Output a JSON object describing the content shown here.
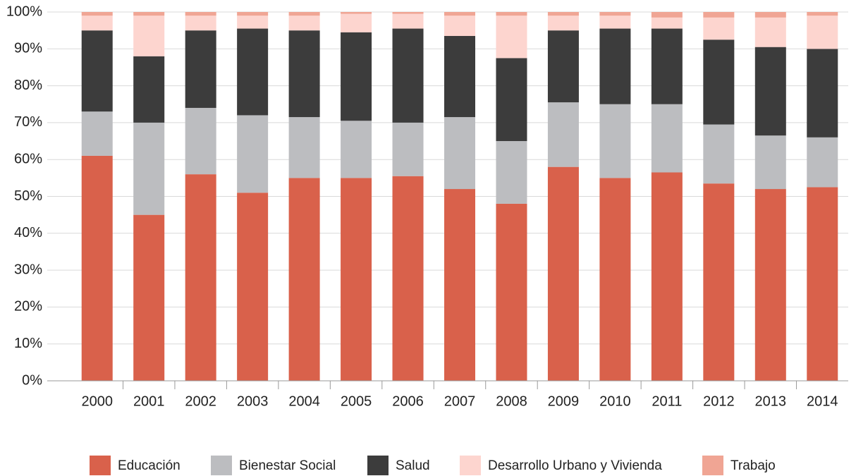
{
  "chart_data": {
    "type": "stacked_bar",
    "categories": [
      "2000",
      "2001",
      "2002",
      "2003",
      "2004",
      "2005",
      "2006",
      "2007",
      "2008",
      "2009",
      "2010",
      "2011",
      "2012",
      "2013",
      "2014"
    ],
    "series": [
      {
        "name": "Educación",
        "color": "#d9614b",
        "values": [
          61,
          45,
          56,
          51,
          55,
          55,
          55.5,
          52,
          48,
          58,
          55,
          56.5,
          53.5,
          52,
          52.5
        ]
      },
      {
        "name": "Bienestar Social",
        "color": "#bcbdc0",
        "values": [
          12,
          25,
          18,
          21,
          16.5,
          15.5,
          14.5,
          19.5,
          17,
          17.5,
          20,
          18.5,
          16,
          14.5,
          13.5
        ]
      },
      {
        "name": "Salud",
        "color": "#3c3c3c",
        "values": [
          22,
          18,
          21,
          23.5,
          23.5,
          24,
          25.5,
          22,
          22.5,
          19.5,
          20.5,
          20.5,
          23,
          24,
          24
        ]
      },
      {
        "name": "Desarrollo Urbano y Vivienda",
        "color": "#fdd5cf",
        "values": [
          4,
          11,
          4,
          3.5,
          4,
          5,
          4,
          5.5,
          11.5,
          4,
          3.5,
          3,
          6,
          8,
          9
        ]
      },
      {
        "name": "Trabajo",
        "color": "#f0a594",
        "values": [
          1,
          1,
          1,
          1,
          1,
          0.5,
          0.5,
          1,
          1,
          1,
          1,
          1.5,
          1.5,
          1.5,
          1
        ]
      }
    ],
    "ylim": [
      0,
      100
    ],
    "yticks": [
      {
        "value": 0,
        "label": "0%"
      },
      {
        "value": 10,
        "label": "10%"
      },
      {
        "value": 20,
        "label": "20%"
      },
      {
        "value": 30,
        "label": "30%"
      },
      {
        "value": 40,
        "label": "40%"
      },
      {
        "value": 50,
        "label": "50%"
      },
      {
        "value": 60,
        "label": "60%"
      },
      {
        "value": 70,
        "label": "70%"
      },
      {
        "value": 80,
        "label": "80%"
      },
      {
        "value": 90,
        "label": "90%"
      },
      {
        "value": 100,
        "label": "100%"
      }
    ],
    "grid": true,
    "legend": "bottom"
  }
}
